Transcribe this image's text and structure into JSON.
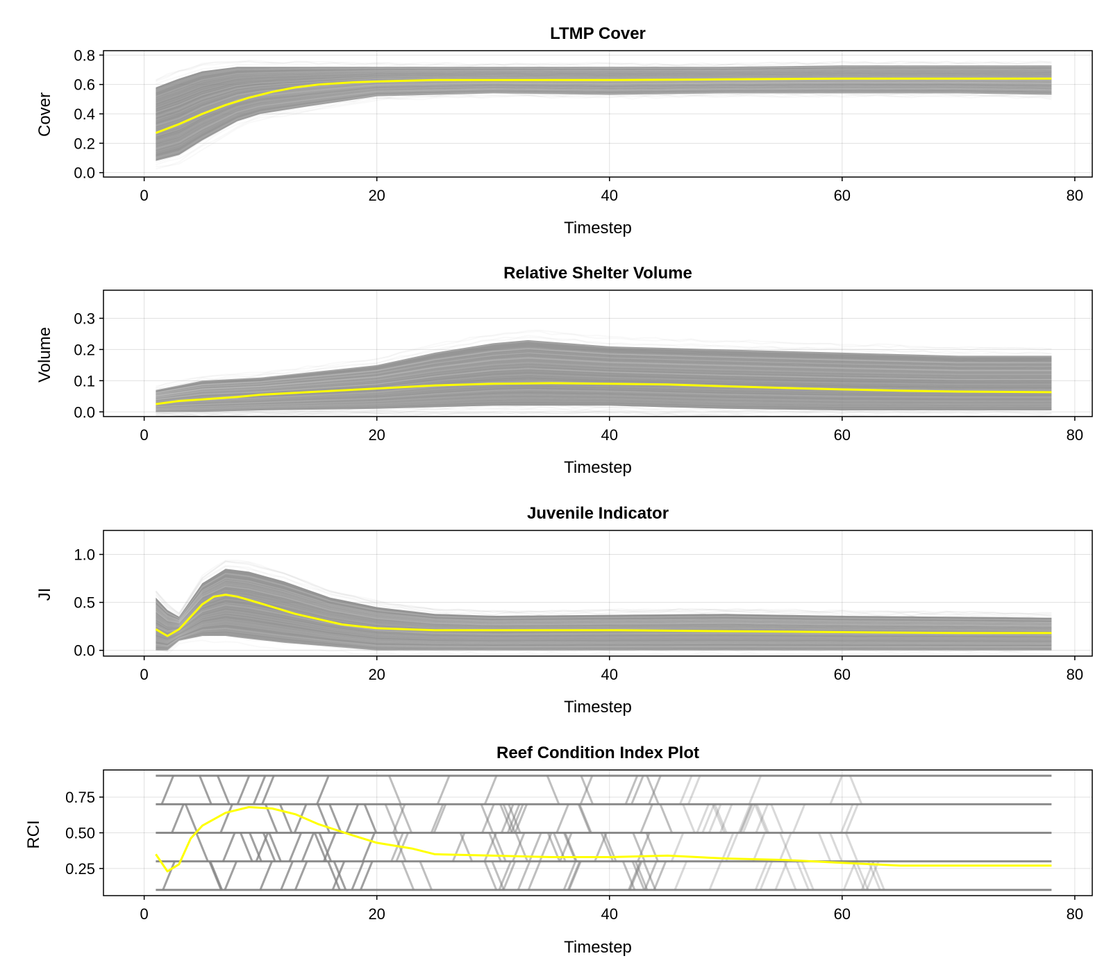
{
  "colors": {
    "ensemble": "#808080",
    "mean": "#ffff00",
    "background": "#ffffff"
  },
  "chart_data": [
    {
      "type": "line",
      "title": "LTMP Cover",
      "xlabel": "Timestep",
      "ylabel": "Cover",
      "xlim": [
        -3.5,
        81.5
      ],
      "ylim": [
        -0.03,
        0.83
      ],
      "xticks": [
        0,
        20,
        40,
        60,
        80
      ],
      "xtick_labels": [
        "0",
        "20",
        "40",
        "60",
        "80"
      ],
      "yticks": [
        0.0,
        0.2,
        0.4,
        0.6,
        0.8
      ],
      "ytick_labels": [
        "0.0",
        "0.2",
        "0.4",
        "0.6",
        "0.8"
      ],
      "grid": true,
      "ensemble_bands": [
        {
          "x": [
            1,
            3,
            5,
            8,
            10,
            14,
            20,
            30,
            40,
            50,
            60,
            70,
            78
          ],
          "lower": [
            0.08,
            0.12,
            0.22,
            0.35,
            0.4,
            0.45,
            0.52,
            0.54,
            0.53,
            0.54,
            0.54,
            0.54,
            0.53
          ],
          "upper": [
            0.58,
            0.64,
            0.69,
            0.72,
            0.72,
            0.72,
            0.72,
            0.72,
            0.72,
            0.72,
            0.73,
            0.73,
            0.73
          ]
        }
      ],
      "series": [
        {
          "x": [
            1,
            3,
            5,
            7,
            9,
            11,
            13,
            15,
            18,
            20,
            25,
            30,
            40,
            50,
            60,
            70,
            78
          ],
          "values": [
            0.27,
            0.33,
            0.4,
            0.46,
            0.51,
            0.55,
            0.58,
            0.6,
            0.615,
            0.62,
            0.63,
            0.63,
            0.63,
            0.635,
            0.64,
            0.64,
            0.64
          ]
        }
      ]
    },
    {
      "type": "line",
      "title": "Relative Shelter Volume",
      "xlabel": "Timestep",
      "ylabel": "Volume",
      "xlim": [
        -3.5,
        81.5
      ],
      "ylim": [
        -0.015,
        0.39
      ],
      "xticks": [
        0,
        20,
        40,
        60,
        80
      ],
      "xtick_labels": [
        "0",
        "20",
        "40",
        "60",
        "80"
      ],
      "yticks": [
        0.0,
        0.1,
        0.2,
        0.3
      ],
      "ytick_labels": [
        "0.0",
        "0.1",
        "0.2",
        "0.3"
      ],
      "grid": true,
      "ensemble_bands": [
        {
          "x": [
            1,
            5,
            10,
            20,
            25,
            30,
            33,
            40,
            50,
            60,
            70,
            78
          ],
          "lower": [
            0.0,
            0.0,
            0.005,
            0.01,
            0.015,
            0.02,
            0.02,
            0.02,
            0.01,
            0.005,
            0.005,
            0.005
          ],
          "upper": [
            0.07,
            0.1,
            0.11,
            0.15,
            0.19,
            0.22,
            0.23,
            0.21,
            0.2,
            0.19,
            0.18,
            0.18
          ]
        }
      ],
      "series": [
        {
          "x": [
            1,
            3,
            5,
            8,
            10,
            15,
            20,
            25,
            30,
            35,
            40,
            45,
            50,
            55,
            60,
            65,
            70,
            78
          ],
          "values": [
            0.025,
            0.035,
            0.04,
            0.048,
            0.055,
            0.065,
            0.075,
            0.085,
            0.09,
            0.092,
            0.09,
            0.088,
            0.082,
            0.077,
            0.072,
            0.068,
            0.065,
            0.063
          ]
        }
      ]
    },
    {
      "type": "line",
      "title": "Juvenile Indicator",
      "xlabel": "Timestep",
      "ylabel": "JI",
      "xlim": [
        -3.5,
        81.5
      ],
      "ylim": [
        -0.06,
        1.25
      ],
      "xticks": [
        0,
        20,
        40,
        60,
        80
      ],
      "xtick_labels": [
        "0",
        "20",
        "40",
        "60",
        "80"
      ],
      "yticks": [
        0.0,
        0.5,
        1.0
      ],
      "ytick_labels": [
        "0.0",
        "0.5",
        "1.0"
      ],
      "grid": true,
      "ensemble_bands": [
        {
          "x": [
            1,
            2,
            3,
            5,
            7,
            9,
            12,
            16,
            20,
            25,
            30,
            40,
            50,
            60,
            70,
            78
          ],
          "lower": [
            0.0,
            0.0,
            0.1,
            0.15,
            0.15,
            0.12,
            0.08,
            0.04,
            0.0,
            0.0,
            0.0,
            0.0,
            0.0,
            0.0,
            0.0,
            0.0
          ],
          "upper": [
            0.55,
            0.42,
            0.35,
            0.7,
            0.85,
            0.82,
            0.72,
            0.55,
            0.45,
            0.38,
            0.36,
            0.37,
            0.38,
            0.36,
            0.35,
            0.34
          ]
        }
      ],
      "series": [
        {
          "x": [
            1,
            2,
            3,
            5,
            6,
            7,
            8,
            10,
            13,
            17,
            20,
            25,
            30,
            40,
            50,
            60,
            70,
            78
          ],
          "values": [
            0.22,
            0.15,
            0.22,
            0.48,
            0.56,
            0.58,
            0.56,
            0.49,
            0.38,
            0.27,
            0.23,
            0.21,
            0.21,
            0.21,
            0.2,
            0.19,
            0.18,
            0.18
          ]
        }
      ]
    },
    {
      "type": "line",
      "title": "Reef Condition Index Plot",
      "xlabel": "Timestep",
      "ylabel": "RCI",
      "xlim": [
        -3.5,
        81.5
      ],
      "ylim": [
        0.06,
        0.94
      ],
      "xticks": [
        0,
        20,
        40,
        60,
        80
      ],
      "xtick_labels": [
        "0",
        "20",
        "40",
        "60",
        "80"
      ],
      "yticks": [
        0.25,
        0.5,
        0.75
      ],
      "ytick_labels": [
        "0.25",
        "0.50",
        "0.75"
      ],
      "grid": true,
      "levels": [
        0.1,
        0.3,
        0.5,
        0.7,
        0.9
      ],
      "series": [
        {
          "x": [
            1,
            2,
            3,
            4,
            5,
            7,
            9,
            11,
            13,
            15,
            18,
            20,
            23,
            25,
            30,
            35,
            40,
            45,
            50,
            55,
            60,
            65,
            70,
            78
          ],
          "values": [
            0.35,
            0.23,
            0.28,
            0.46,
            0.55,
            0.64,
            0.68,
            0.67,
            0.63,
            0.56,
            0.48,
            0.43,
            0.39,
            0.35,
            0.34,
            0.33,
            0.33,
            0.34,
            0.32,
            0.31,
            0.29,
            0.27,
            0.27,
            0.27
          ]
        }
      ]
    }
  ]
}
